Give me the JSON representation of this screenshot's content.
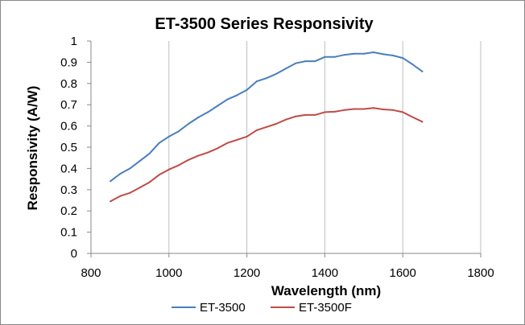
{
  "chart_data": {
    "type": "line",
    "title": "ET-3500 Series Responsivity",
    "xlabel": "Wavelength (nm)",
    "ylabel": "Responsivity (A/W)",
    "xlim": [
      800,
      1800
    ],
    "ylim": [
      0,
      1
    ],
    "xticks": [
      800,
      1000,
      1200,
      1400,
      1600,
      1800
    ],
    "yticks": [
      0,
      0.1,
      0.2,
      0.3,
      0.4,
      0.5,
      0.6,
      0.7,
      0.8,
      0.9,
      1
    ],
    "xtick_labels": [
      "800",
      "1000",
      "1200",
      "1400",
      "1600",
      "1800"
    ],
    "ytick_labels": [
      "0",
      "0.1",
      "0.2",
      "0.3",
      "0.4",
      "0.5",
      "0.6",
      "0.7",
      "0.8",
      "0.9",
      "1"
    ],
    "grid": "vertical",
    "legend_position": "bottom",
    "series": [
      {
        "name": "ET-3500",
        "color": "#4a7ebb",
        "x": [
          850,
          875,
          900,
          925,
          950,
          975,
          1000,
          1025,
          1050,
          1075,
          1100,
          1125,
          1150,
          1175,
          1200,
          1225,
          1250,
          1275,
          1300,
          1325,
          1350,
          1375,
          1400,
          1425,
          1450,
          1475,
          1500,
          1525,
          1550,
          1575,
          1600,
          1625,
          1650
        ],
        "y": [
          0.34,
          0.375,
          0.4,
          0.435,
          0.47,
          0.52,
          0.55,
          0.575,
          0.61,
          0.64,
          0.665,
          0.695,
          0.725,
          0.745,
          0.77,
          0.81,
          0.825,
          0.845,
          0.87,
          0.895,
          0.905,
          0.905,
          0.925,
          0.925,
          0.935,
          0.94,
          0.94,
          0.947,
          0.938,
          0.932,
          0.92,
          0.89,
          0.857
        ]
      },
      {
        "name": "ET-3500F",
        "color": "#be4b48",
        "x": [
          850,
          875,
          900,
          925,
          950,
          975,
          1000,
          1025,
          1050,
          1075,
          1100,
          1125,
          1150,
          1175,
          1200,
          1225,
          1250,
          1275,
          1300,
          1325,
          1350,
          1375,
          1400,
          1425,
          1450,
          1475,
          1500,
          1525,
          1550,
          1575,
          1600,
          1625,
          1650
        ],
        "y": [
          0.245,
          0.27,
          0.285,
          0.31,
          0.335,
          0.37,
          0.395,
          0.415,
          0.44,
          0.46,
          0.475,
          0.495,
          0.52,
          0.535,
          0.55,
          0.58,
          0.595,
          0.61,
          0.63,
          0.645,
          0.652,
          0.652,
          0.665,
          0.667,
          0.675,
          0.68,
          0.68,
          0.685,
          0.678,
          0.675,
          0.665,
          0.642,
          0.62
        ]
      }
    ]
  }
}
